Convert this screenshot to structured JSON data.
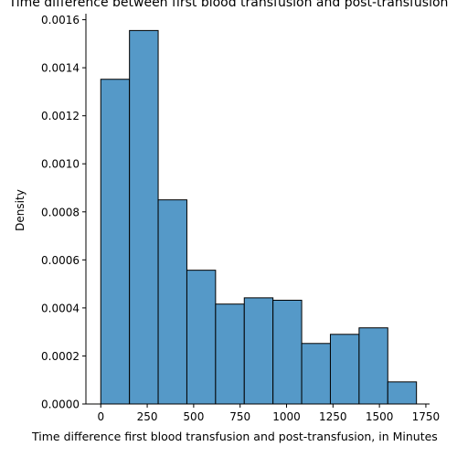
{
  "chart_data": {
    "type": "bar",
    "title": "Time difference between first blood transfusion and post-transfusion",
    "xlabel": "Time difference first blood transfusion and post-transfusion, in Minutes",
    "ylabel": "Density",
    "bin_edges": [
      0,
      154.5,
      309,
      463.5,
      618,
      772.5,
      927,
      1081.5,
      1236,
      1390.5,
      1545,
      1699.5
    ],
    "values": [
      0.001352,
      0.001555,
      0.00085,
      0.000557,
      0.000416,
      0.000442,
      0.000432,
      0.000252,
      0.00029,
      0.000317,
      9.2e-05
    ],
    "xlim": [
      -80,
      1770
    ],
    "ylim": [
      0,
      0.001625
    ],
    "xticks": [
      0,
      250,
      500,
      750,
      1000,
      1250,
      1500,
      1750
    ],
    "xtick_labels": [
      "0",
      "250",
      "500",
      "750",
      "1000",
      "1250",
      "1500",
      "1750"
    ],
    "yticks": [
      0,
      0.0002,
      0.0004,
      0.0006,
      0.0008,
      0.001,
      0.0012,
      0.0014,
      0.0016
    ],
    "ytick_labels": [
      "0.0000",
      "0.0002",
      "0.0004",
      "0.0006",
      "0.0008",
      "0.0010",
      "0.0012",
      "0.0014",
      "0.0016"
    ],
    "bar_color": "#5599c8",
    "bar_edge_color": "#000000",
    "grid": false
  }
}
